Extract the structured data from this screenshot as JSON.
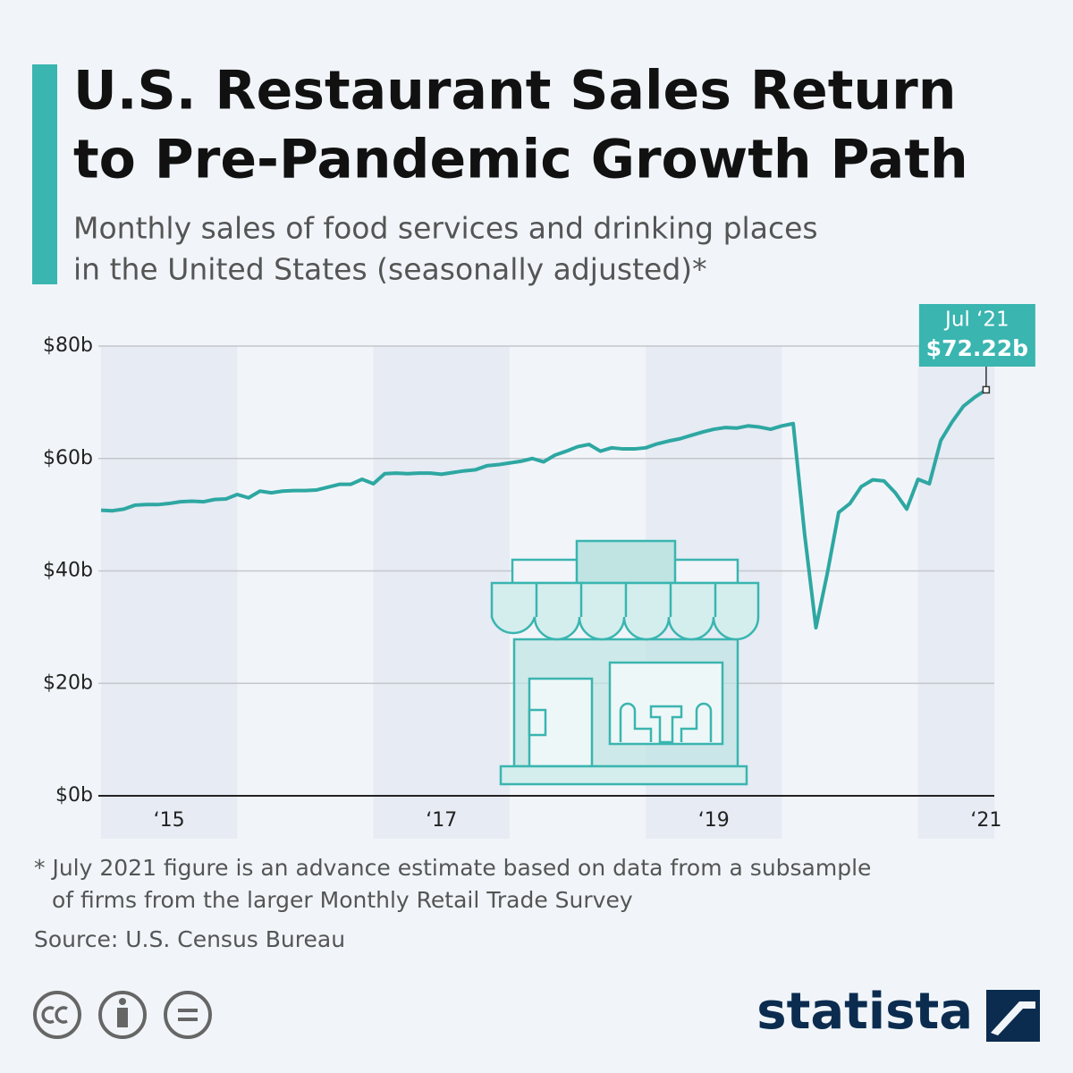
{
  "chart_data": {
    "type": "line",
    "title": [
      "U.S. Restaurant Sales Return",
      "to Pre-Pandemic Growth Path"
    ],
    "subtitle": [
      "Monthly sales of food services and drinking places",
      "in the United States (seasonally adjusted)*"
    ],
    "x": [
      2015,
      2015.083,
      2015.167,
      2015.25,
      2015.333,
      2015.417,
      2015.5,
      2015.583,
      2015.667,
      2015.75,
      2015.833,
      2015.917,
      2016,
      2016.083,
      2016.167,
      2016.25,
      2016.333,
      2016.417,
      2016.5,
      2016.583,
      2016.667,
      2016.75,
      2016.833,
      2016.917,
      2017,
      2017.083,
      2017.167,
      2017.25,
      2017.333,
      2017.417,
      2017.5,
      2017.583,
      2017.667,
      2017.75,
      2017.833,
      2017.917,
      2018,
      2018.083,
      2018.167,
      2018.25,
      2018.333,
      2018.417,
      2018.5,
      2018.583,
      2018.667,
      2018.75,
      2018.833,
      2018.917,
      2019,
      2019.083,
      2019.167,
      2019.25,
      2019.333,
      2019.417,
      2019.5,
      2019.583,
      2019.667,
      2019.75,
      2019.833,
      2019.917,
      2020,
      2020.083,
      2020.167,
      2020.25,
      2020.333,
      2020.417,
      2020.5,
      2020.583,
      2020.667,
      2020.75,
      2020.833,
      2020.917,
      2021,
      2021.083,
      2021.167,
      2021.25,
      2021.333,
      2021.417,
      2021.5
    ],
    "series": [
      {
        "name": "Monthly sales",
        "color": "#2ea7a2",
        "values": [
          50.8,
          50.7,
          51.0,
          51.7,
          51.8,
          51.8,
          52.0,
          52.3,
          52.4,
          52.3,
          52.7,
          52.8,
          53.6,
          53.0,
          54.2,
          53.9,
          54.2,
          54.3,
          54.3,
          54.4,
          54.9,
          55.4,
          55.4,
          56.3,
          55.5,
          57.3,
          57.4,
          57.3,
          57.4,
          57.4,
          57.2,
          57.5,
          57.8,
          58.0,
          58.7,
          58.9,
          59.2,
          59.5,
          60.0,
          59.4,
          60.6,
          61.3,
          62.1,
          62.5,
          61.3,
          61.9,
          61.7,
          61.7,
          61.9,
          62.6,
          63.1,
          63.5,
          64.1,
          64.7,
          65.2,
          65.5,
          65.4,
          65.8,
          65.6,
          65.2,
          65.8,
          66.2,
          46.5,
          29.9,
          39.5,
          50.4,
          52.0,
          55.0,
          56.2,
          56.0,
          53.9,
          51.0,
          56.3,
          55.5,
          63.2,
          66.5,
          69.3,
          70.9,
          72.22
        ],
        "value_labels": [
          null,
          null,
          null,
          null,
          null,
          null,
          null,
          null,
          null,
          null,
          null,
          null,
          null,
          null,
          null,
          null,
          null,
          null,
          null,
          null,
          null,
          null,
          null,
          null,
          null,
          null,
          null,
          null,
          null,
          null,
          null,
          null,
          null,
          null,
          null,
          null,
          null,
          null,
          null,
          null,
          null,
          null,
          null,
          null,
          null,
          null,
          null,
          null,
          null,
          null,
          null,
          null,
          null,
          null,
          null,
          null,
          null,
          null,
          null,
          null,
          null,
          null,
          null,
          null,
          null,
          null,
          null,
          null,
          null,
          null,
          null,
          null,
          null,
          null,
          null,
          null,
          null,
          null,
          "$72.22b"
        ]
      }
    ],
    "callout_date": "Jul ‘21",
    "xlim": [
      2014.98,
      2021.56
    ],
    "xticks": [
      {
        "value": 2015.5,
        "label": "‘15"
      },
      {
        "value": 2017.5,
        "label": "‘17"
      },
      {
        "value": 2019.5,
        "label": "‘19"
      },
      {
        "value": 2021.5,
        "label": "‘21"
      }
    ],
    "ylim": [
      0,
      80
    ],
    "yticks": [
      {
        "value": 0,
        "label": "$0b"
      },
      {
        "value": 20,
        "label": "$20b"
      },
      {
        "value": 40,
        "label": "$40b"
      },
      {
        "value": 60,
        "label": "$60b"
      },
      {
        "value": 80,
        "label": "$80b"
      }
    ],
    "grid": true,
    "footnote": [
      "* July 2021 figure is an advance estimate based on data from a subsample",
      "of firms from the larger Monthly Retail Trade Survey"
    ],
    "source": "Source: U.S. Census Bureau",
    "brand": "statista"
  }
}
